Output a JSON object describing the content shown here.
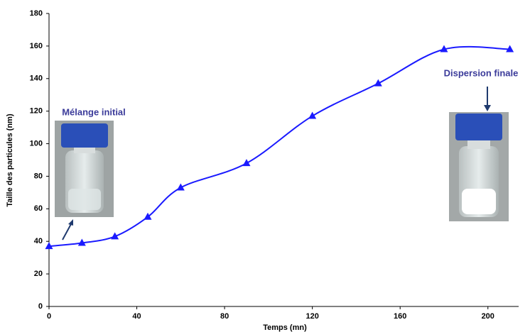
{
  "chart_data": {
    "type": "line",
    "x_label": "Temps (mn)",
    "y_label": "Taille des particules (nm)",
    "x": [
      0,
      15,
      30,
      45,
      60,
      90,
      120,
      150,
      180,
      210
    ],
    "series": [
      {
        "color": "#1a1aff",
        "values": [
          37,
          39,
          43,
          55,
          73,
          88,
          117,
          137,
          158,
          158
        ]
      }
    ],
    "xlim": [
      0,
      214
    ],
    "xticks": [
      0,
      40,
      80,
      120,
      160,
      200
    ],
    "ylim": [
      0,
      180
    ],
    "yticks": [
      0,
      20,
      40,
      60,
      80,
      100,
      120,
      140,
      160,
      180
    ],
    "annotations": [
      "Mélange initial",
      "Dispersion finale"
    ]
  }
}
